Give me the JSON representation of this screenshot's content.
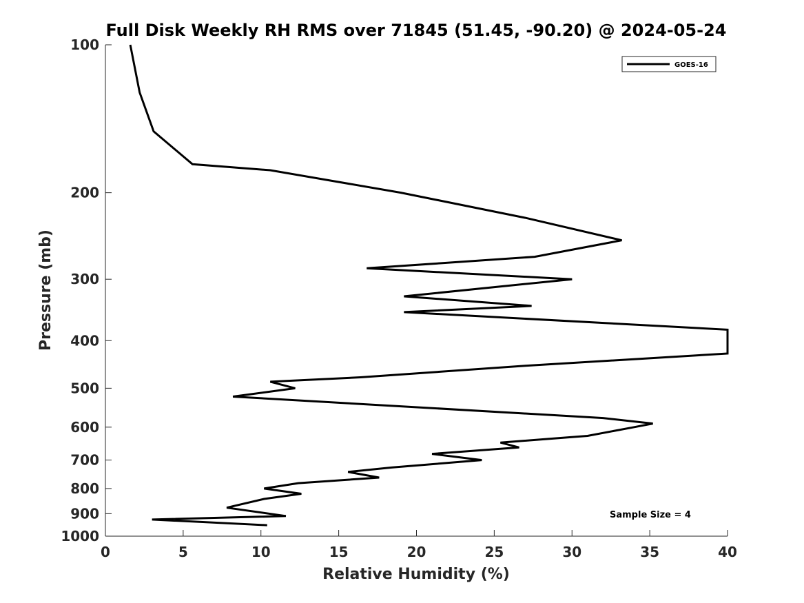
{
  "chart_data": {
    "type": "line",
    "title": "Full Disk Weekly RH RMS over 71845 (51.45, -90.20) @ 2024-05-24",
    "xlabel": "Relative Humidity (%)",
    "ylabel": "Pressure (mb)",
    "xlim": [
      0,
      40
    ],
    "ylim": [
      1000,
      100
    ],
    "yscale": "log",
    "y_reversed": true,
    "grid": false,
    "legend_position": "top-right",
    "x_ticks": [
      "0",
      "5",
      "10",
      "15",
      "20",
      "25",
      "30",
      "35",
      "40"
    ],
    "y_ticks": [
      "100",
      "200",
      "300",
      "400",
      "500",
      "600",
      "700",
      "800",
      "900",
      "1000"
    ],
    "annotation": "Sample Size = 4",
    "series": [
      {
        "name": "GOES-16",
        "color": "#000000",
        "points": [
          {
            "x": 1.6,
            "y": 100
          },
          {
            "x": 2.2,
            "y": 125
          },
          {
            "x": 3.1,
            "y": 150
          },
          {
            "x": 5.6,
            "y": 175
          },
          {
            "x": 10.6,
            "y": 180
          },
          {
            "x": 19.0,
            "y": 200
          },
          {
            "x": 27.0,
            "y": 225
          },
          {
            "x": 33.2,
            "y": 250
          },
          {
            "x": 27.6,
            "y": 270
          },
          {
            "x": 16.8,
            "y": 285
          },
          {
            "x": 30.0,
            "y": 300
          },
          {
            "x": 19.2,
            "y": 325
          },
          {
            "x": 27.4,
            "y": 340
          },
          {
            "x": 19.2,
            "y": 350
          },
          {
            "x": 40.0,
            "y": 380
          },
          {
            "x": 40.0,
            "y": 425
          },
          {
            "x": 27.0,
            "y": 450
          },
          {
            "x": 16.4,
            "y": 475
          },
          {
            "x": 10.6,
            "y": 485
          },
          {
            "x": 12.2,
            "y": 500
          },
          {
            "x": 8.2,
            "y": 520
          },
          {
            "x": 32.0,
            "y": 575
          },
          {
            "x": 35.2,
            "y": 590
          },
          {
            "x": 34.0,
            "y": 600
          },
          {
            "x": 31.0,
            "y": 625
          },
          {
            "x": 25.4,
            "y": 645
          },
          {
            "x": 26.6,
            "y": 660
          },
          {
            "x": 21.0,
            "y": 680
          },
          {
            "x": 24.2,
            "y": 700
          },
          {
            "x": 18.4,
            "y": 725
          },
          {
            "x": 15.6,
            "y": 740
          },
          {
            "x": 17.6,
            "y": 760
          },
          {
            "x": 12.4,
            "y": 780
          },
          {
            "x": 10.2,
            "y": 800
          },
          {
            "x": 12.6,
            "y": 820
          },
          {
            "x": 10.2,
            "y": 840
          },
          {
            "x": 7.8,
            "y": 875
          },
          {
            "x": 11.6,
            "y": 910
          },
          {
            "x": 3.0,
            "y": 925
          },
          {
            "x": 10.4,
            "y": 950
          }
        ]
      }
    ]
  }
}
